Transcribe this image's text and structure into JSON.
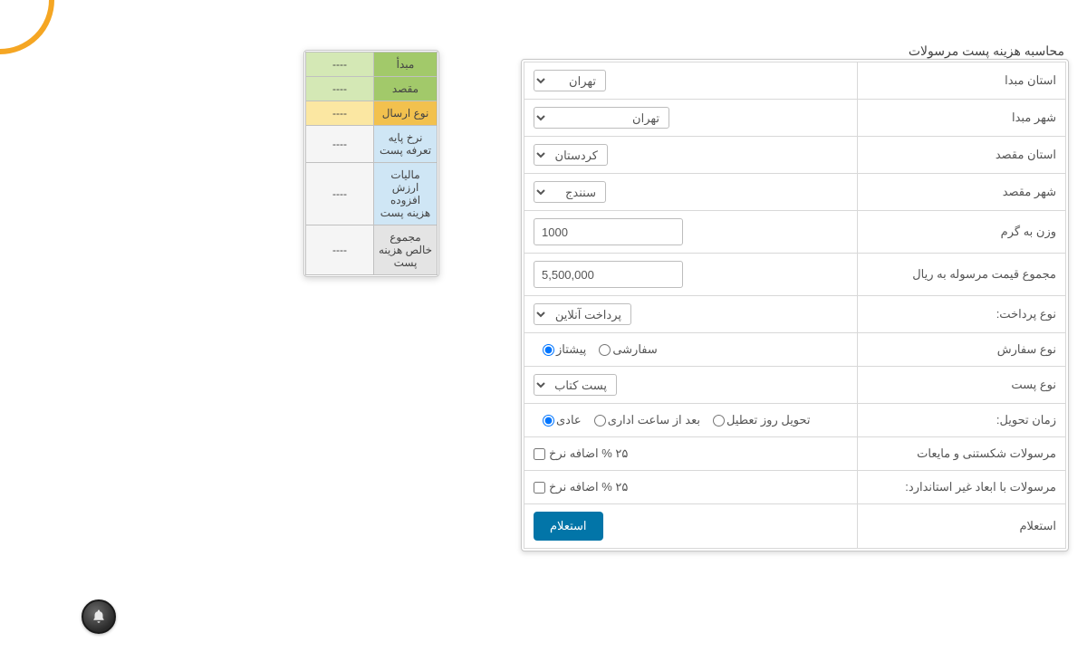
{
  "page_title": "محاسبه هزینه پست مرسولات",
  "form": {
    "origin_province": {
      "label": "استان مبدا",
      "value": "تهران"
    },
    "origin_city": {
      "label": "شهر مبدا",
      "value": "تهران"
    },
    "dest_province": {
      "label": "استان مقصد",
      "value": "کردستان"
    },
    "dest_city": {
      "label": "شهر مقصد",
      "value": "سنندج"
    },
    "weight": {
      "label": "وزن به گرم",
      "value": "1000"
    },
    "total_price": {
      "label": "مجموع قیمت مرسوله به ریال",
      "value": "5,500,000"
    },
    "payment_type": {
      "label": "نوع پرداخت:",
      "value": "پرداخت آنلاین"
    },
    "order_type": {
      "label": "نوع سفارش",
      "opt1": "پیشتاز",
      "opt2": "سفارشی"
    },
    "post_type": {
      "label": "نوع پست",
      "value": "پست کتاب"
    },
    "delivery_time": {
      "label": "زمان تحویل:",
      "opt1": "عادی",
      "opt2": "بعد از ساعت اداری",
      "opt3": "تحویل روز تعطیل"
    },
    "fragile": {
      "label": "مرسولات شکستنی و مایعات",
      "checkbox_label": "۲۵ % اضافه نرخ"
    },
    "nonstandard": {
      "label": "مرسولات با ابعاد غیر استاندارد:",
      "checkbox_label": "۲۵ % اضافه نرخ"
    },
    "submit": {
      "label": "استعلام",
      "button": "استعلام"
    }
  },
  "summary": {
    "rows": [
      {
        "label": "مبدأ",
        "value": "----"
      },
      {
        "label": "مقصد",
        "value": "----"
      },
      {
        "label": "نوع ارسال",
        "value": "----"
      },
      {
        "label": "نرخ پایه تعرفه پست",
        "value": "----"
      },
      {
        "label": "مالیات ارزش افزوده هزینه پست",
        "value": "----"
      },
      {
        "label": "مجموع خالص هزینه پست",
        "value": "----"
      }
    ],
    "row_classes": [
      "row-green1",
      "row-green2",
      "row-yellow",
      "row-blue1",
      "row-blue2",
      "row-gray"
    ]
  },
  "colors": {
    "accent": "#f5a623",
    "primary_btn": "#0275a8",
    "border": "#c8c8c8"
  }
}
